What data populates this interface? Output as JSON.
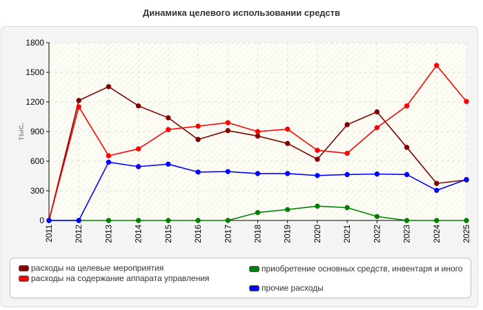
{
  "chart_data": {
    "type": "line",
    "title": "Динамика целевого использовании средств",
    "ylabel": "тыс.",
    "xlabel": "",
    "x": [
      "2011",
      "2012",
      "2013",
      "2014",
      "2015",
      "2016",
      "2017",
      "2018",
      "2019",
      "2020",
      "2021",
      "2022",
      "2023",
      "2024",
      "2025"
    ],
    "ylim": [
      0,
      1800
    ],
    "yticks": [
      0,
      300,
      600,
      900,
      1200,
      1500,
      1800
    ],
    "grid": true,
    "legend_position": "bottom",
    "series": [
      {
        "name": "расходы на целевые мероприятия",
        "color": "#800000",
        "values": [
          0,
          1215,
          1355,
          1160,
          1040,
          820,
          910,
          855,
          780,
          620,
          970,
          1100,
          740,
          375,
          410
        ]
      },
      {
        "name": "расходы на содержание аппарата управления",
        "color": "#ff0000",
        "values": [
          0,
          1150,
          655,
          725,
          920,
          955,
          990,
          900,
          925,
          710,
          680,
          940,
          1160,
          1570,
          1205
        ]
      },
      {
        "name": "приобретение основных средств, инвентаря и иного",
        "color": "#008000",
        "values": [
          0,
          0,
          0,
          0,
          0,
          0,
          0,
          80,
          110,
          145,
          130,
          40,
          0,
          0,
          0
        ]
      },
      {
        "name": "прочие расходы",
        "color": "#0000ff",
        "values": [
          0,
          0,
          590,
          545,
          570,
          490,
          495,
          475,
          475,
          455,
          465,
          470,
          465,
          305,
          415
        ]
      }
    ]
  }
}
